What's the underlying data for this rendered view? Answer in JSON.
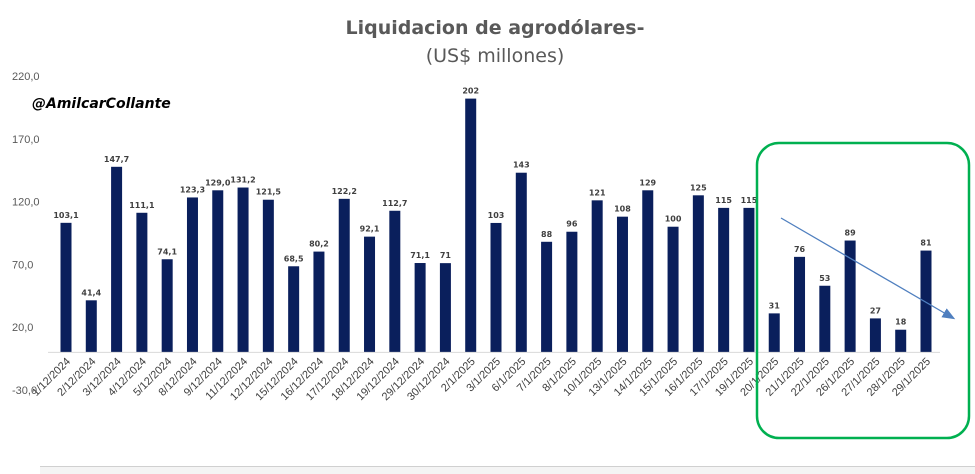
{
  "chart_data": {
    "type": "bar",
    "title": "Liquidacion de agrodólares-",
    "subtitle": "(US$ millones)",
    "handle": "@AmilcarCollante",
    "ylim": [
      -30,
      220
    ],
    "yticks": [
      "-30,0",
      "20,0",
      "70,0",
      "120,0",
      "170,0",
      "220,0"
    ],
    "ytick_values": [
      -30,
      20,
      70,
      120,
      170,
      220
    ],
    "categories": [
      "1/12/2024",
      "2/12/2024",
      "3/12/2024",
      "4/12/2024",
      "5/12/2024",
      "8/12/2024",
      "9/12/2024",
      "11/12/2024",
      "12/12/2024",
      "15/12/2024",
      "16/12/2024",
      "17/12/2024",
      "18/12/2024",
      "19/12/2024",
      "29/12/2024",
      "30/12/2024",
      "2/1/2025",
      "3/1/2025",
      "6/1/2025",
      "7/1/2025",
      "8/1/2025",
      "10/1/2025",
      "13/1/2025",
      "14/1/2025",
      "15/1/2025",
      "16/1/2025",
      "17/1/2025",
      "19/1/2025",
      "20/1/2025",
      "21/1/2025",
      "22/1/2025",
      "26/1/2025",
      "27/1/2025",
      "28/1/2025",
      "29/1/2025"
    ],
    "values": [
      103.1,
      41.4,
      147.7,
      111.1,
      74.1,
      123.3,
      129.0,
      131.2,
      121.5,
      68.5,
      80.2,
      122.2,
      92.1,
      112.7,
      71.1,
      71,
      202,
      103,
      143,
      88,
      96,
      121,
      108,
      129,
      100,
      125,
      115,
      115,
      31,
      76,
      53,
      89,
      27,
      18,
      81
    ],
    "labels": [
      "103,1",
      "41,4",
      "147,7",
      "111,1",
      "74,1",
      "123,3",
      "129,0",
      "131,2",
      "121,5",
      "68,5",
      "80,2",
      "122,2",
      "92,1",
      "112,7",
      "71,1",
      "71",
      "202",
      "103",
      "143",
      "88",
      "96",
      "121",
      "108",
      "129",
      "100",
      "125",
      "115",
      "115",
      "31",
      "76",
      "53",
      "89",
      "27",
      "18",
      "81"
    ],
    "bar_color": "#0a1f5c",
    "highlight_color": "#00b050",
    "trend_color": "#4f7fbf",
    "grid": false,
    "legend": "none"
  }
}
